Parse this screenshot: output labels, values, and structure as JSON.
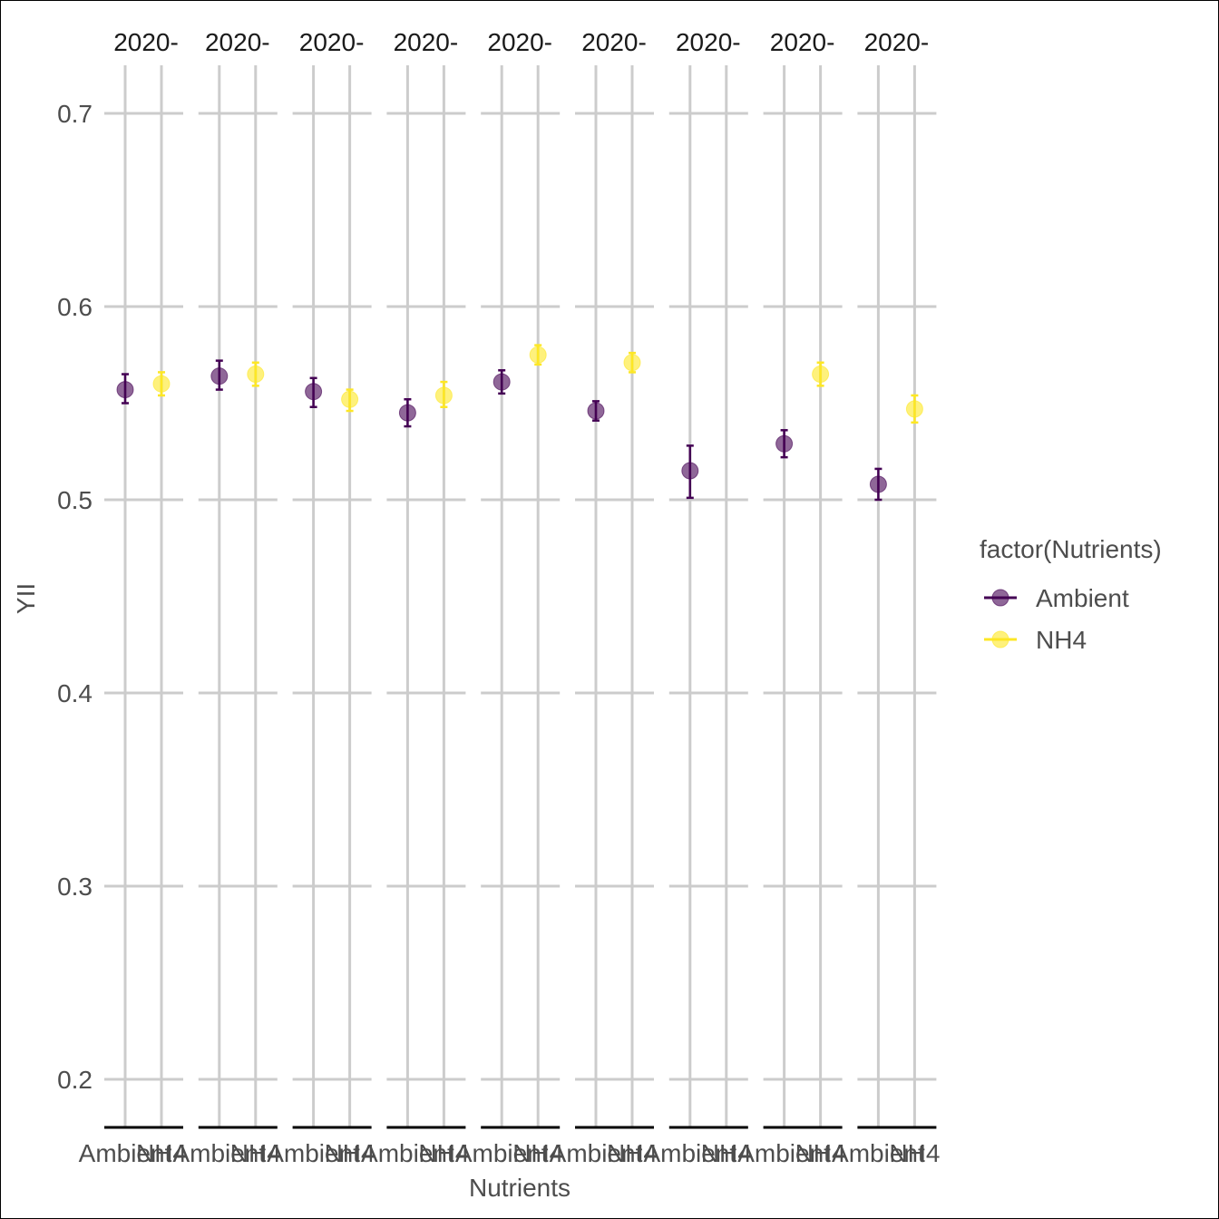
{
  "chart_data": {
    "type": "scatter",
    "xlabel": "Nutrients",
    "ylabel": "YII",
    "ylim": [
      0.175,
      0.72
    ],
    "yticks": [
      "0.2",
      "0.3",
      "0.4",
      "0.5",
      "0.6",
      "0.7"
    ],
    "ytick_values": [
      0.2,
      0.3,
      0.4,
      0.5,
      0.6,
      0.7
    ],
    "categories": [
      "Ambient",
      "NH4"
    ],
    "grid": true,
    "legend": {
      "title": "factor(Nutrients)",
      "position": "right",
      "entries": [
        {
          "label": "Ambient",
          "color": "#440154"
        },
        {
          "label": "NH4",
          "color": "#fde725"
        }
      ]
    },
    "panels": [
      {
        "strip": "2020-",
        "points": [
          {
            "category": "Ambient",
            "y": 0.557,
            "ymin": 0.55,
            "ymax": 0.565
          },
          {
            "category": "NH4",
            "y": 0.56,
            "ymin": 0.554,
            "ymax": 0.566
          }
        ]
      },
      {
        "strip": "2020-",
        "points": [
          {
            "category": "Ambient",
            "y": 0.564,
            "ymin": 0.557,
            "ymax": 0.572
          },
          {
            "category": "NH4",
            "y": 0.565,
            "ymin": 0.559,
            "ymax": 0.571
          }
        ]
      },
      {
        "strip": "2020-",
        "points": [
          {
            "category": "Ambient",
            "y": 0.556,
            "ymin": 0.548,
            "ymax": 0.563
          },
          {
            "category": "NH4",
            "y": 0.552,
            "ymin": 0.546,
            "ymax": 0.557
          }
        ]
      },
      {
        "strip": "2020-",
        "points": [
          {
            "category": "Ambient",
            "y": 0.545,
            "ymin": 0.538,
            "ymax": 0.552
          },
          {
            "category": "NH4",
            "y": 0.554,
            "ymin": 0.548,
            "ymax": 0.561
          }
        ]
      },
      {
        "strip": "2020-",
        "points": [
          {
            "category": "Ambient",
            "y": 0.561,
            "ymin": 0.555,
            "ymax": 0.567
          },
          {
            "category": "NH4",
            "y": 0.575,
            "ymin": 0.57,
            "ymax": 0.58
          }
        ]
      },
      {
        "strip": "2020-",
        "points": [
          {
            "category": "Ambient",
            "y": 0.546,
            "ymin": 0.541,
            "ymax": 0.551
          },
          {
            "category": "NH4",
            "y": 0.571,
            "ymin": 0.566,
            "ymax": 0.576
          }
        ]
      },
      {
        "strip": "2020-",
        "points": [
          {
            "category": "Ambient",
            "y": 0.515,
            "ymin": 0.501,
            "ymax": 0.528
          }
        ]
      },
      {
        "strip": "2020-",
        "points": [
          {
            "category": "Ambient",
            "y": 0.529,
            "ymin": 0.522,
            "ymax": 0.536
          },
          {
            "category": "NH4",
            "y": 0.565,
            "ymin": 0.559,
            "ymax": 0.571
          }
        ]
      },
      {
        "strip": "2020-",
        "points": [
          {
            "category": "Ambient",
            "y": 0.508,
            "ymin": 0.5,
            "ymax": 0.516
          },
          {
            "category": "NH4",
            "y": 0.547,
            "ymin": 0.54,
            "ymax": 0.554
          }
        ]
      }
    ]
  }
}
